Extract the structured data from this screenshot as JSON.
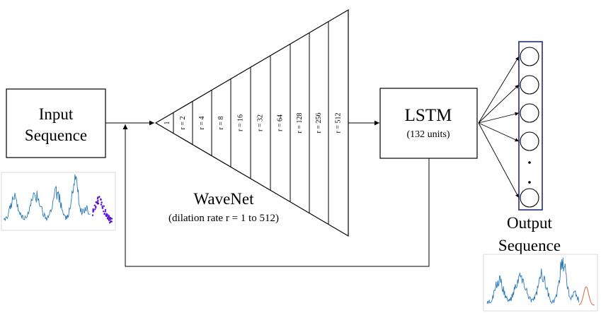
{
  "input_block": {
    "line1": "Input",
    "line2": "Sequence"
  },
  "wavenet": {
    "title": "WaveNet",
    "subtitle": "(dilation rate r = 1 to 512)",
    "dilation_labels": [
      "1",
      "r = 2",
      "r = 4",
      "r = 8",
      "r = 16",
      "r = 32",
      "r = 64",
      "r = 128",
      "r = 256",
      "r = 512"
    ]
  },
  "lstm_block": {
    "title": "LSTM",
    "units": "(132 units)"
  },
  "output_block": {
    "line1": "Output",
    "line2": "Sequence",
    "visible_units": 5,
    "ellipsis_dots": 2
  },
  "colors": {
    "stroke": "#000000",
    "output_frame": "#1f2f6e",
    "signal": "#2b7bba",
    "input_forecast": "#5b12d8",
    "output_forecast": "#e0623a"
  },
  "icons": {
    "input_plot": "input-signal-plot-icon",
    "output_plot": "output-signal-plot-icon"
  }
}
